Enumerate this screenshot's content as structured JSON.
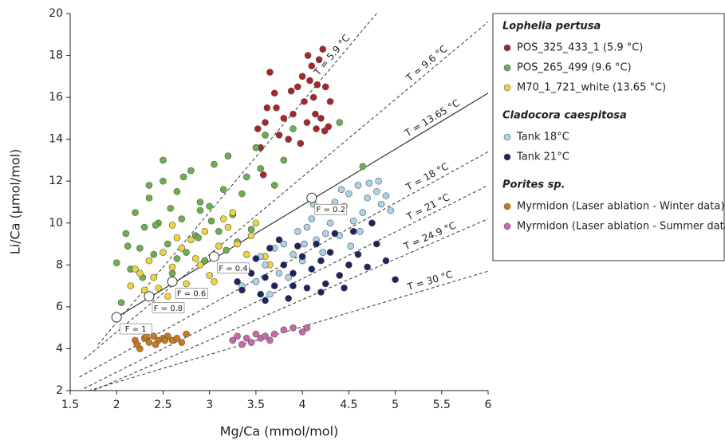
{
  "chart_data": {
    "type": "scatter",
    "x_label": "Mg/Ca (mmol/mol)",
    "y_label": "Li/Ca (µmol/mol)",
    "xlim": [
      1.5,
      6
    ],
    "ylim": [
      2,
      20
    ],
    "xticks": [
      1.5,
      2,
      2.5,
      3,
      3.5,
      4,
      4.5,
      5,
      5.5,
      6
    ],
    "yticks": [
      2,
      4,
      6,
      8,
      10,
      12,
      14,
      16,
      18,
      20
    ],
    "isotherms": [
      {
        "label": "T = 5.9 °C",
        "style": "dashed",
        "x": [
          1.8,
          4.8
        ],
        "y": [
          4.2,
          20
        ]
      },
      {
        "label": "T = 9.6 °C",
        "style": "dashed",
        "x": [
          1.65,
          6
        ],
        "y": [
          3.5,
          19.6
        ]
      },
      {
        "label": "T = 13.65 °C",
        "style": "solid",
        "x": [
          2.0,
          6
        ],
        "y": [
          5.5,
          16.2
        ]
      },
      {
        "label": "T = 18 °C",
        "style": "dashed",
        "x": [
          1.6,
          6
        ],
        "y": [
          2.65,
          13.4
        ]
      },
      {
        "label": "T = 21 °C",
        "style": "dashed",
        "x": [
          1.65,
          6
        ],
        "y": [
          2.1,
          11.8
        ]
      },
      {
        "label": "T = 24.9 °C",
        "style": "dashed",
        "x": [
          1.75,
          6
        ],
        "y": [
          2.0,
          10.2
        ]
      },
      {
        "label": "T = 30 °C",
        "style": "dashed",
        "x": [
          1.7,
          6
        ],
        "y": [
          2.0,
          7.7
        ]
      }
    ],
    "markers": [
      {
        "label": "F = 1",
        "x": 2.0,
        "y": 5.5
      },
      {
        "label": "F = 0.8",
        "x": 2.35,
        "y": 6.5
      },
      {
        "label": "F = 0.6",
        "x": 2.6,
        "y": 7.2
      },
      {
        "label": "F = 0.4",
        "x": 3.05,
        "y": 8.4
      },
      {
        "label": "F = 0.2",
        "x": 4.1,
        "y": 11.2
      }
    ],
    "groups": [
      {
        "title": "Lophelia pertusa",
        "series": [
          {
            "name": "POS_325_433_1 (5.9 °C)",
            "color": "#a8262a",
            "x": [
              3.52,
              3.55,
              3.6,
              3.62,
              3.7,
              3.75,
              3.8,
              3.85,
              3.9,
              3.95,
              4.0,
              4.02,
              4.05,
              4.08,
              4.1,
              4.12,
              4.15,
              4.18,
              4.2,
              4.22,
              4.25,
              4.28,
              4.3,
              3.65,
              3.72,
              3.88,
              3.98,
              4.06,
              4.14,
              4.24,
              3.58,
              4.16
            ],
            "y": [
              14.5,
              13.6,
              14.8,
              15.5,
              16.2,
              14.2,
              15.0,
              14.0,
              15.2,
              16.5,
              17.0,
              15.8,
              14.8,
              16.8,
              17.5,
              16.0,
              14.5,
              17.8,
              15.0,
              18.3,
              16.5,
              14.6,
              15.8,
              17.2,
              15.5,
              16.3,
              13.8,
              18.0,
              15.2,
              14.4,
              12.3,
              16.6
            ]
          },
          {
            "name": "POS_265_499 (9.6 °C)",
            "color": "#6ab04c",
            "x": [
              2.0,
              2.05,
              2.1,
              2.15,
              2.2,
              2.25,
              2.3,
              2.35,
              2.4,
              2.45,
              2.5,
              2.55,
              2.6,
              2.65,
              2.7,
              2.75,
              2.8,
              2.85,
              2.9,
              2.95,
              3.0,
              3.05,
              3.1,
              3.15,
              3.2,
              3.25,
              3.3,
              3.4,
              3.5,
              3.6,
              3.7,
              3.8,
              3.9,
              2.12,
              2.28,
              2.42,
              2.58,
              2.72,
              2.88,
              3.02,
              3.18,
              3.35,
              3.55,
              2.5,
              2.9,
              3.45,
              4.4,
              4.65,
              2.35,
              2.65
            ],
            "y": [
              8.1,
              6.2,
              9.5,
              7.8,
              10.5,
              8.8,
              9.8,
              11.2,
              8.5,
              10.0,
              12.0,
              9.0,
              7.6,
              11.5,
              10.2,
              8.6,
              12.5,
              9.4,
              11.0,
              8.2,
              10.8,
              12.8,
              9.6,
              11.6,
              13.2,
              10.4,
              9.1,
              12.2,
              13.6,
              14.2,
              11.8,
              13.0,
              14.5,
              8.9,
              7.4,
              9.9,
              10.7,
              12.2,
              9.3,
              10.1,
              8.7,
              11.4,
              12.6,
              13.0,
              10.6,
              9.7,
              14.8,
              12.7,
              11.8,
              8.3
            ]
          },
          {
            "name": "M70_1_721_white (13.65 °C)",
            "color": "#f0d43a",
            "x": [
              2.15,
              2.2,
              2.3,
              2.35,
              2.4,
              2.5,
              2.55,
              2.6,
              2.7,
              2.75,
              2.8,
              2.9,
              2.95,
              3.0,
              3.1,
              3.15,
              3.2,
              3.3,
              3.4,
              3.5,
              3.6,
              2.45,
              2.65,
              2.85,
              3.05,
              3.25,
              3.45,
              3.65,
              2.25,
              2.6
            ],
            "y": [
              7.0,
              7.8,
              6.8,
              8.2,
              7.4,
              8.6,
              6.5,
              7.9,
              8.8,
              7.1,
              9.2,
              8.0,
              9.6,
              7.5,
              8.9,
              10.2,
              9.8,
              9.0,
              8.5,
              10.0,
              8.4,
              6.9,
              9.3,
              8.3,
              7.2,
              10.5,
              9.4,
              8.0,
              7.6,
              9.9
            ]
          }
        ]
      },
      {
        "title": "Cladocora caespitosa",
        "series": [
          {
            "name": "Tank 18°C",
            "color": "#a9d3e8",
            "x": [
              3.35,
              3.4,
              3.5,
              3.55,
              3.6,
              3.7,
              3.75,
              3.8,
              3.9,
              3.95,
              4.0,
              4.05,
              4.1,
              4.15,
              4.2,
              4.25,
              4.3,
              4.35,
              4.4,
              4.45,
              4.5,
              4.55,
              4.6,
              4.65,
              4.7,
              4.75,
              4.8,
              4.85,
              4.9,
              4.95,
              3.65,
              3.85,
              4.02,
              4.22,
              4.42,
              4.62,
              4.82,
              4.12,
              4.52,
              4.72
            ],
            "y": [
              7.0,
              7.8,
              7.2,
              8.4,
              8.0,
              8.8,
              7.6,
              9.0,
              8.5,
              9.6,
              8.2,
              9.8,
              10.2,
              9.2,
              10.6,
              9.5,
              10.0,
              11.0,
              9.4,
              10.8,
              11.4,
              10.1,
              11.8,
              10.5,
              11.2,
              10.0,
              11.5,
              10.9,
              11.3,
              10.6,
              6.6,
              7.4,
              9.0,
              8.6,
              11.6,
              9.6,
              12.0,
              10.9,
              8.9,
              11.9
            ]
          },
          {
            "name": "Tank 21°C",
            "color": "#1c2462",
            "x": [
              3.3,
              3.35,
              3.4,
              3.5,
              3.55,
              3.6,
              3.65,
              3.7,
              3.8,
              3.85,
              3.9,
              4.0,
              4.05,
              4.1,
              4.2,
              4.25,
              4.3,
              4.4,
              4.5,
              4.6,
              4.7,
              4.8,
              4.9,
              5.0,
              3.45,
              3.75,
              3.95,
              4.15,
              4.35,
              4.55,
              4.75,
              3.6,
              3.9,
              4.2,
              4.45
            ],
            "y": [
              7.2,
              6.8,
              7.8,
              8.3,
              6.6,
              7.4,
              8.8,
              7.0,
              8.0,
              6.4,
              7.6,
              8.4,
              6.9,
              7.8,
              8.2,
              7.1,
              8.6,
              7.5,
              8.0,
              8.5,
              7.9,
              9.0,
              8.2,
              7.3,
              7.6,
              9.2,
              8.9,
              9.0,
              9.5,
              9.6,
              10.0,
              6.3,
              7.0,
              6.7,
              6.9
            ]
          }
        ]
      },
      {
        "title": "Porites sp.",
        "series": [
          {
            "name": "Myrmidon (Laser ablation - Winter data)",
            "color": "#c87a1e",
            "x": [
              2.2,
              2.25,
              2.3,
              2.35,
              2.4,
              2.45,
              2.5,
              2.55,
              2.6,
              2.65,
              2.7,
              2.75,
              2.22,
              2.32,
              2.42,
              2.52
            ],
            "y": [
              4.4,
              4.0,
              4.5,
              4.3,
              4.6,
              4.4,
              4.5,
              4.6,
              4.4,
              4.5,
              4.3,
              4.7,
              4.2,
              4.6,
              4.2,
              4.4
            ]
          },
          {
            "name": "Myrmidon (Laser ablation - Summer data",
            "color": "#c86aa8",
            "x": [
              3.25,
              3.3,
              3.4,
              3.45,
              3.5,
              3.55,
              3.6,
              3.65,
              3.7,
              3.8,
              3.9,
              4.0,
              4.05,
              3.35
            ],
            "y": [
              4.4,
              4.6,
              4.5,
              4.3,
              4.7,
              4.5,
              4.6,
              4.4,
              4.7,
              4.9,
              5.0,
              4.8,
              5.0,
              4.2
            ]
          }
        ]
      }
    ]
  }
}
